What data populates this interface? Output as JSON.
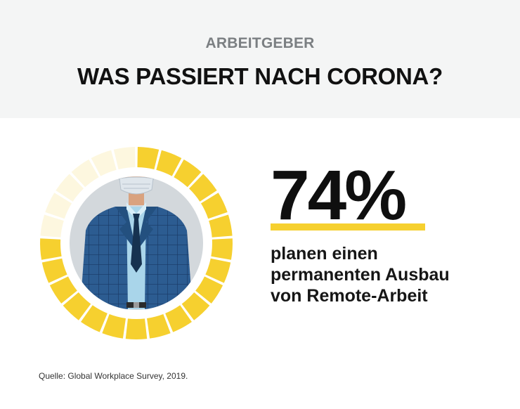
{
  "header": {
    "eyebrow": "ARBEITGEBER",
    "title": "WAS PASSIERT NACH CORONA?"
  },
  "stat": {
    "value": "74%",
    "fraction": 0.74,
    "description_lines": [
      "planen einen",
      "permanenten Ausbau",
      "von Remote-Arbeit"
    ]
  },
  "illustration": {
    "subject": "businessman-with-face-mask-icon"
  },
  "footer": {
    "source": "Quelle: Global Workplace Survey, 2019."
  },
  "colors": {
    "header_bg": "#f4f5f5",
    "accent_yellow": "#f6d02f",
    "ring_inactive": "#fdf7df",
    "suit_blue": "#2c5c91",
    "circle_bg": "#d3d8dc",
    "text_dark": "#111111",
    "eyebrow_gray": "#7b7f82"
  }
}
